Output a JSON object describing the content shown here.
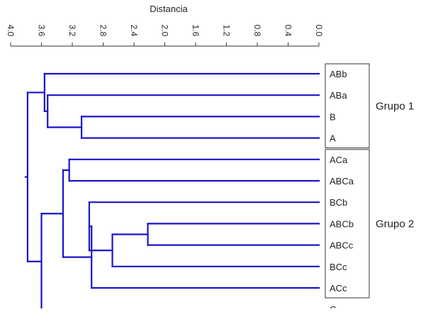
{
  "axis": {
    "title": "Distancia",
    "ticks": [
      "4.0",
      "3.6",
      "3.2",
      "2.8",
      "2.4",
      "2.0",
      "1.6",
      "1.2",
      "0.8",
      "0.4",
      "0.0"
    ],
    "max": 4.0,
    "min": 0.0
  },
  "colors": {
    "branch": "#1a14c8",
    "axis": "#333333",
    "text": "#222222"
  },
  "leaves": [
    "ABb",
    "ABa",
    "B",
    "A",
    "ACa",
    "ABCa",
    "BCb",
    "ABCb",
    "ABCc",
    "BCc",
    "ACc",
    "C"
  ],
  "groups": [
    {
      "label": "Grupo 1",
      "leaves": [
        "ABb",
        "ABa",
        "B",
        "A"
      ]
    },
    {
      "label": "Grupo 2",
      "leaves": [
        "ACa",
        "ABCa",
        "BCb",
        "ABCb",
        "ABCc",
        "BCc",
        "ACc"
      ]
    }
  ],
  "merges": [
    {
      "id": "n1",
      "children": [
        "B",
        "A"
      ],
      "height": 3.08
    },
    {
      "id": "n2",
      "children": [
        "ABa",
        "n1"
      ],
      "height": 3.52
    },
    {
      "id": "n3",
      "children": [
        "ABb",
        "n2"
      ],
      "height": 3.56
    },
    {
      "id": "n4",
      "children": [
        "ACa",
        "ABCa"
      ],
      "height": 3.24
    },
    {
      "id": "n5",
      "children": [
        "ABCb",
        "ABCc"
      ],
      "height": 2.22
    },
    {
      "id": "n6",
      "children": [
        "n5",
        "BCc"
      ],
      "height": 2.68
    },
    {
      "id": "n7",
      "children": [
        "BCb",
        "n6"
      ],
      "height": 2.98
    },
    {
      "id": "n8",
      "children": [
        "n7",
        "ACc"
      ],
      "height": 2.95
    },
    {
      "id": "n9",
      "children": [
        "n4",
        "n8"
      ],
      "height": 3.32
    },
    {
      "id": "n10",
      "children": [
        "C",
        "n9"
      ],
      "height": 3.6
    },
    {
      "id": "root",
      "children": [
        "n3",
        "n10"
      ],
      "height": 3.78
    }
  ]
}
